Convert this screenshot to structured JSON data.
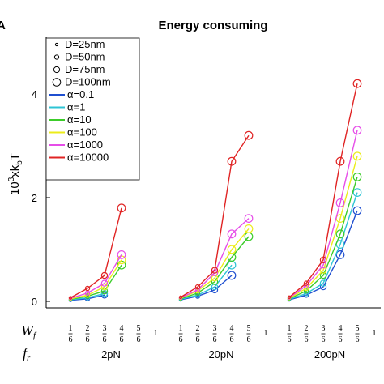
{
  "chart_data": {
    "type": "line",
    "panel_label": "A",
    "title": "Energy consuming",
    "ylabel": "10^3xk_bT",
    "ylabel_parts": {
      "base": "10",
      "exp": "3",
      "mid": "xk",
      "sub": "b",
      "tail": "T"
    },
    "ylim": [
      0,
      4.8
    ],
    "yticks": [
      0,
      2,
      4
    ],
    "ytick_labels": [
      "0",
      "2",
      "4"
    ],
    "row_labels": {
      "wf": "W",
      "wf_sub": "f",
      "fr": "f",
      "fr_sub": "r"
    },
    "groups": [
      {
        "label": "2pN",
        "x_levels": [
          "1/6",
          "2/6",
          "3/6",
          "4/6",
          "5/6",
          "1"
        ]
      },
      {
        "label": "20pN",
        "x_levels": [
          "1/6",
          "2/6",
          "3/6",
          "4/6",
          "5/6",
          "1"
        ]
      },
      {
        "label": "200pN",
        "x_levels": [
          "1/6",
          "2/6",
          "3/6",
          "4/6",
          "5/6",
          "1"
        ]
      }
    ],
    "frac_numerators": [
      "1",
      "2",
      "3",
      "4",
      "5"
    ],
    "frac_denominator": "6",
    "one_label": "1",
    "legend_sizes": [
      {
        "label": "D=25nm",
        "radius": 1.6
      },
      {
        "label": "D=50nm",
        "radius": 2.6
      },
      {
        "label": "D=75nm",
        "radius": 3.6
      },
      {
        "label": "D=100nm",
        "radius": 4.8
      }
    ],
    "series": [
      {
        "name": "α=0.1",
        "color": "#1f4fd0",
        "values": [
          [
            0.02,
            0.05,
            0.12,
            null,
            null
          ],
          [
            0.03,
            0.1,
            0.22,
            0.5,
            null
          ],
          [
            0.03,
            0.12,
            0.28,
            0.9,
            1.75
          ]
        ]
      },
      {
        "name": "α=1",
        "color": "#2ec4d4",
        "values": [
          [
            0.03,
            0.07,
            0.15,
            null,
            null
          ],
          [
            0.04,
            0.12,
            0.28,
            0.7,
            null
          ],
          [
            0.04,
            0.15,
            0.35,
            1.1,
            2.1
          ]
        ]
      },
      {
        "name": "α=10",
        "color": "#3ccc2a",
        "values": [
          [
            0.04,
            0.1,
            0.2,
            0.7,
            null
          ],
          [
            0.05,
            0.16,
            0.38,
            0.85,
            1.25
          ],
          [
            0.05,
            0.2,
            0.5,
            1.3,
            2.4
          ]
        ]
      },
      {
        "name": "α=100",
        "color": "#ecec1a",
        "values": [
          [
            0.05,
            0.12,
            0.28,
            0.8,
            null
          ],
          [
            0.06,
            0.2,
            0.45,
            1.0,
            1.4
          ],
          [
            0.06,
            0.25,
            0.6,
            1.6,
            2.8
          ]
        ]
      },
      {
        "name": "α=1000",
        "color": "#e64ee8",
        "values": [
          [
            0.06,
            0.16,
            0.35,
            0.9,
            null
          ],
          [
            0.07,
            0.22,
            0.55,
            1.3,
            1.6
          ],
          [
            0.07,
            0.3,
            0.7,
            1.9,
            3.3
          ]
        ]
      },
      {
        "name": "α=10000",
        "color": "#e02424",
        "values": [
          [
            0.07,
            0.25,
            0.5,
            1.8,
            null
          ],
          [
            0.08,
            0.28,
            0.6,
            2.7,
            3.2
          ],
          [
            0.08,
            0.35,
            0.8,
            2.7,
            4.2
          ]
        ]
      }
    ],
    "legend_position": "top-left",
    "grid": false
  }
}
